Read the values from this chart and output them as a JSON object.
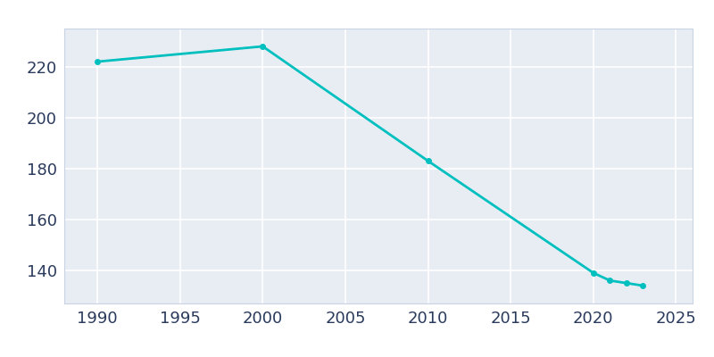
{
  "years": [
    1990,
    2000,
    2010,
    2020,
    2021,
    2022,
    2023
  ],
  "population": [
    222,
    228,
    183,
    139,
    136,
    135,
    134
  ],
  "line_color": "#00BFBF",
  "marker": "o",
  "marker_size": 4,
  "line_width": 2,
  "background_color": "#E8EDF4",
  "figure_background": "#FFFFFF",
  "grid_color": "#FFFFFF",
  "xlabel": "",
  "ylabel": "",
  "xlim": [
    1988,
    2026
  ],
  "ylim": [
    127,
    235
  ],
  "xticks": [
    1990,
    1995,
    2000,
    2005,
    2010,
    2015,
    2020,
    2025
  ],
  "yticks": [
    140,
    160,
    180,
    200,
    220
  ],
  "tick_color": "#2A3A5C",
  "tick_fontsize": 13,
  "spine_color": "#C8D4E4"
}
